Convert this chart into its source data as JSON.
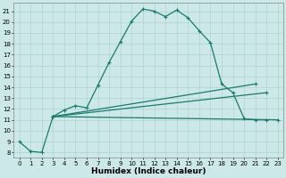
{
  "xlabel": "Humidex (Indice chaleur)",
  "bg_color": "#cce8e8",
  "grid_color": "#aacccc",
  "line_color": "#1a7a6e",
  "line1_x": [
    0,
    1,
    2,
    3,
    4,
    5,
    6,
    7,
    8,
    9,
    10,
    11,
    12,
    13,
    14,
    15,
    16,
    17,
    18,
    19,
    20,
    21,
    22
  ],
  "line1_y": [
    9,
    8.1,
    8.0,
    11.3,
    11.9,
    12.3,
    12.1,
    14.2,
    16.3,
    18.2,
    20.1,
    21.2,
    21.0,
    20.5,
    21.1,
    20.4,
    19.2,
    18.1,
    14.3,
    13.5,
    11.1,
    11.0,
    11.0
  ],
  "line2_x": [
    3,
    23
  ],
  "line2_y": [
    11.3,
    11.0
  ],
  "line3_x": [
    3,
    22
  ],
  "line3_y": [
    11.3,
    13.5
  ],
  "line4_x": [
    3,
    21
  ],
  "line4_y": [
    11.3,
    14.3
  ],
  "ylim": [
    7.5,
    21.8
  ],
  "xlim": [
    -0.5,
    23.5
  ],
  "yticks": [
    8,
    9,
    10,
    11,
    12,
    13,
    14,
    15,
    16,
    17,
    18,
    19,
    20,
    21
  ],
  "xticks": [
    0,
    1,
    2,
    3,
    4,
    5,
    6,
    7,
    8,
    9,
    10,
    11,
    12,
    13,
    14,
    15,
    16,
    17,
    18,
    19,
    20,
    21,
    22,
    23
  ],
  "marker": "+",
  "markersize": 3,
  "linewidth": 0.9,
  "fontsize_tick": 5,
  "fontsize_xlabel": 6.5
}
